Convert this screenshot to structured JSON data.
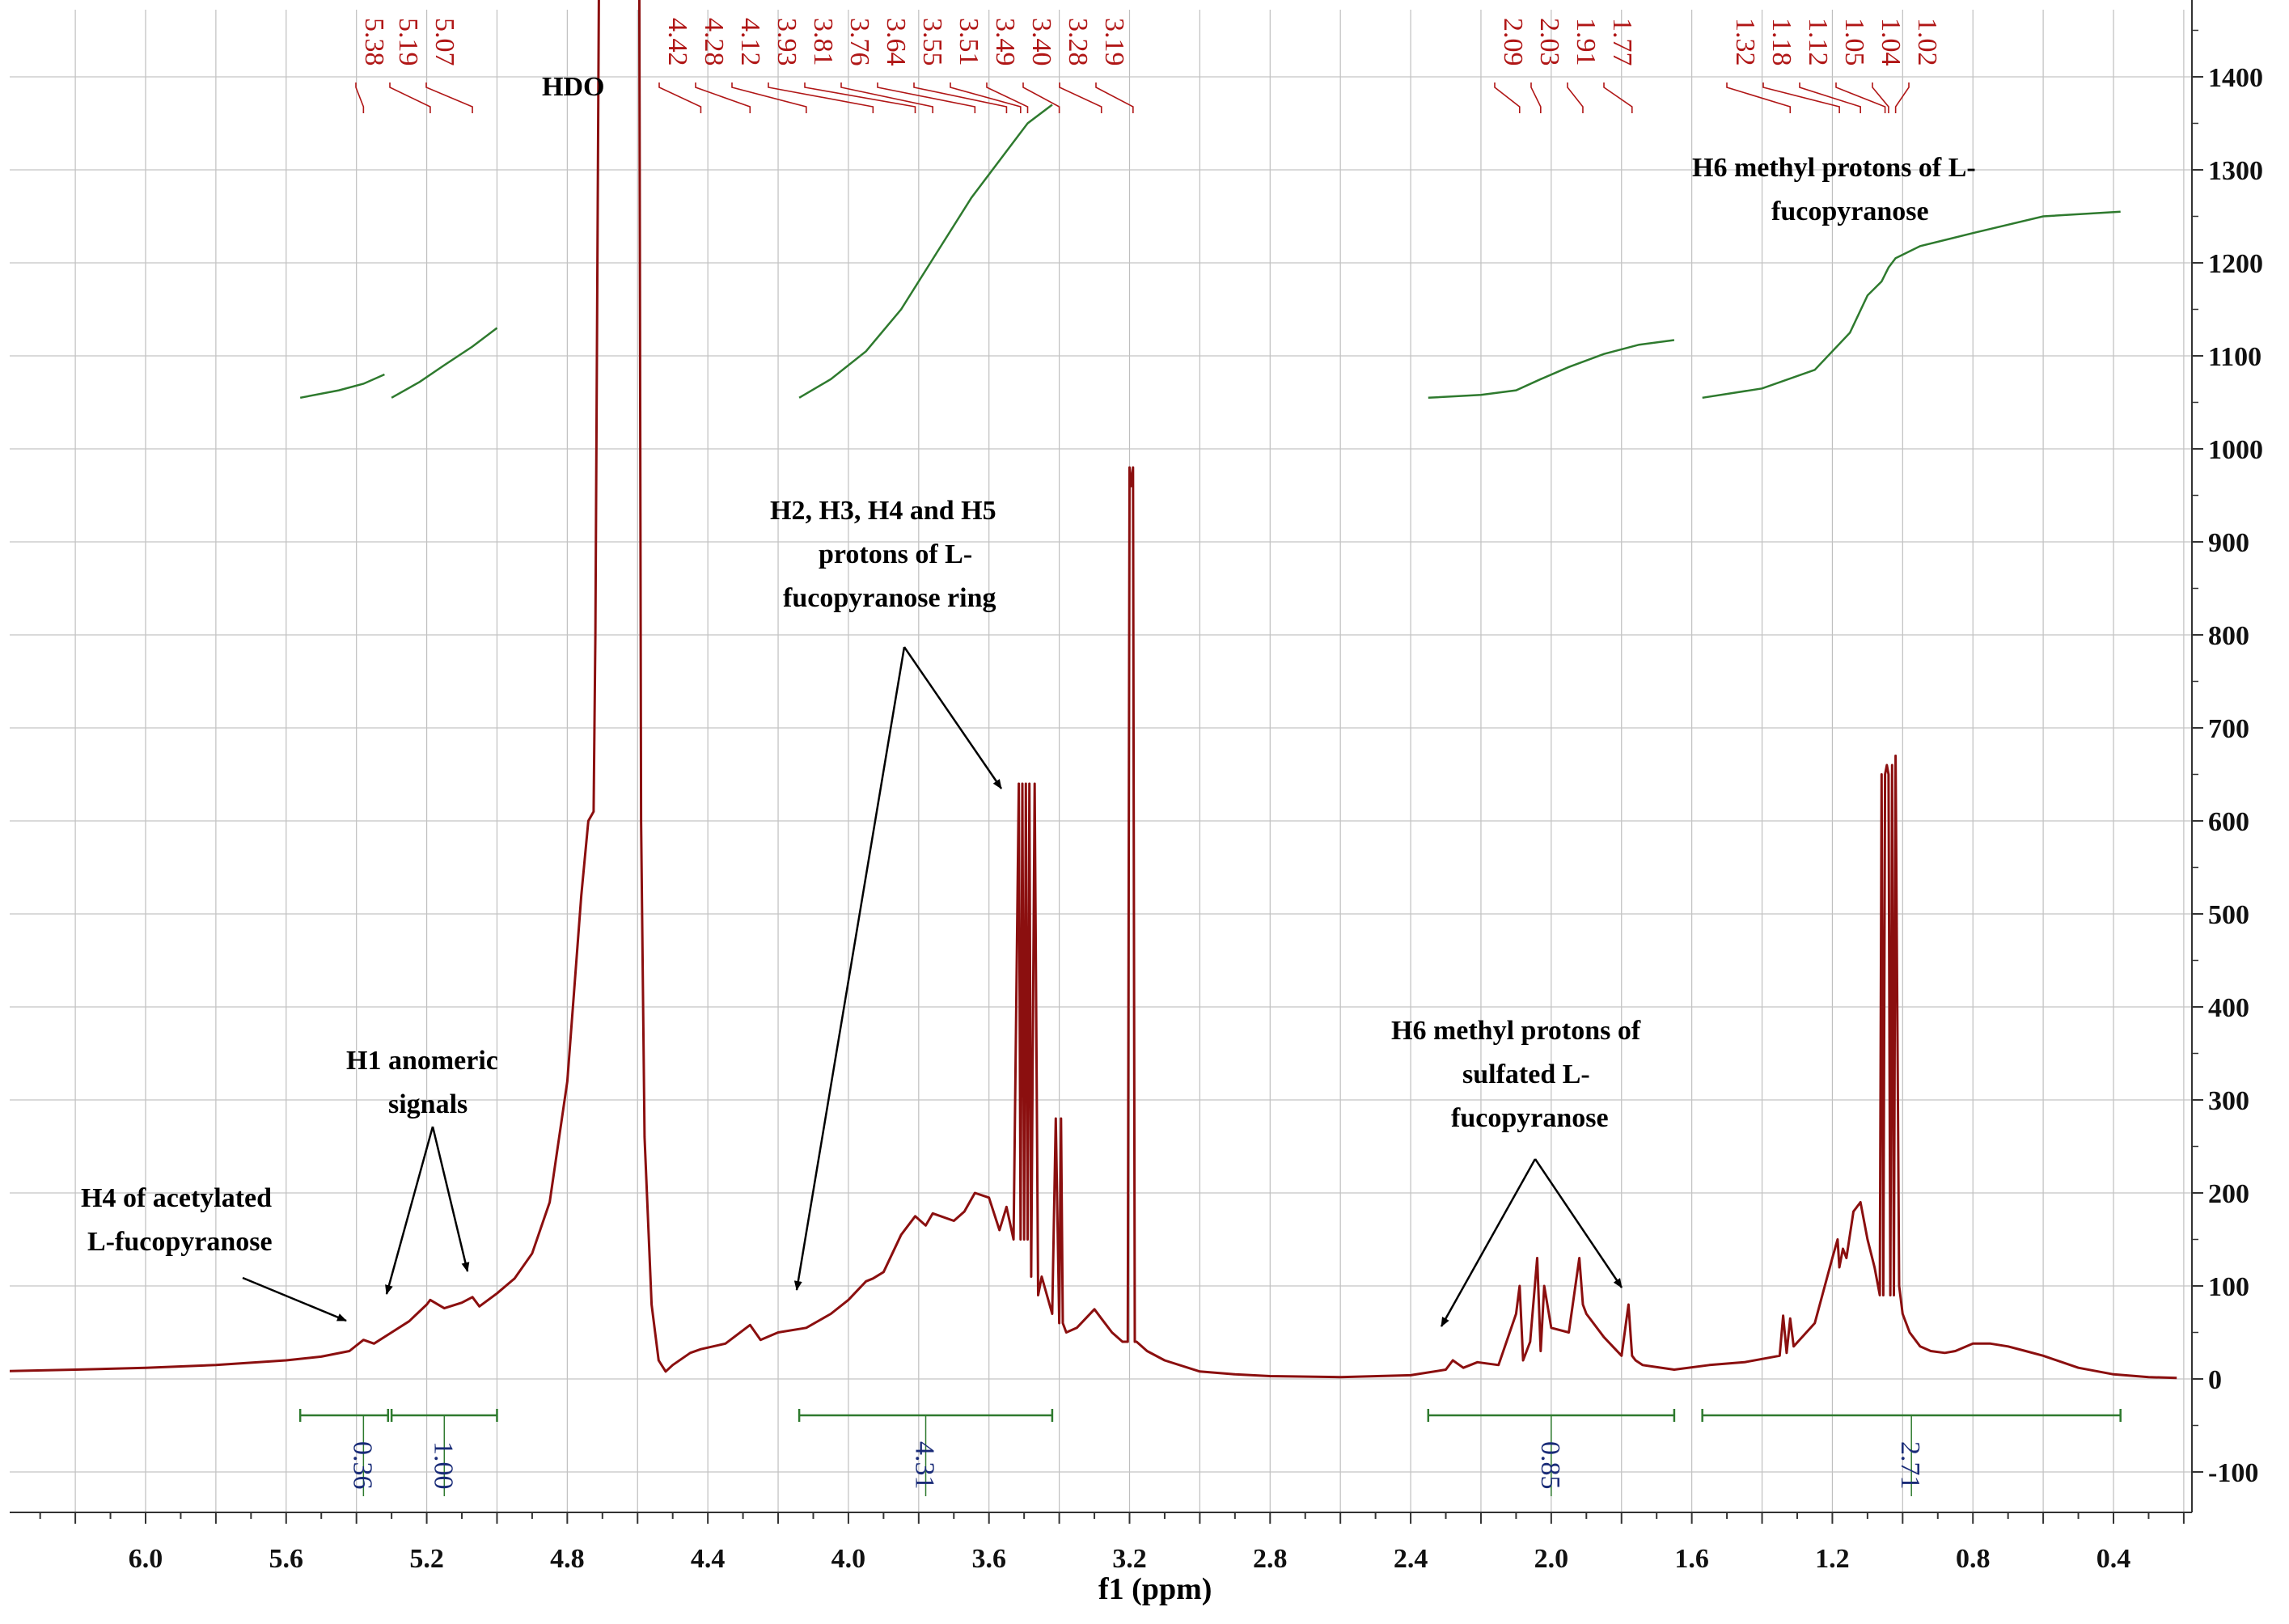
{
  "chart_data": {
    "type": "line",
    "title": "",
    "xlabel": "f1 (ppm)",
    "ylabel": "",
    "xlim": [
      6.5,
      0.2
    ],
    "ylim": [
      -140,
      1470
    ],
    "grid": true,
    "x_ticks": [
      "6.0",
      "5.6",
      "5.2",
      "4.8",
      "4.4",
      "4.0",
      "3.6",
      "3.2",
      "2.8",
      "2.4",
      "2.0",
      "1.6",
      "1.2",
      "0.8",
      "0.4"
    ],
    "y_ticks": [
      "-100",
      "0",
      "100",
      "200",
      "300",
      "400",
      "500",
      "600",
      "700",
      "800",
      "900",
      "1000",
      "1100",
      "1200",
      "1300",
      "1400"
    ],
    "peak_labels": {
      "group1": [
        "5.38",
        "5.19",
        "5.07"
      ],
      "group2": [
        "4.42",
        "4.28",
        "4.12",
        "3.93",
        "3.81",
        "3.76",
        "3.64",
        "3.55",
        "3.51",
        "3.49",
        "3.40",
        "3.28",
        "3.19"
      ],
      "group3": [
        "2.09",
        "2.03",
        "1.91",
        "1.77"
      ],
      "group4": [
        "1.32",
        "1.18",
        "1.12",
        "1.05",
        "1.04",
        "1.02"
      ]
    },
    "hdo_label": "HDO",
    "integrals": [
      {
        "from": 5.56,
        "to": 5.31,
        "value": "0.36"
      },
      {
        "from": 5.3,
        "to": 5.0,
        "value": "1.00"
      },
      {
        "from": 4.14,
        "to": 3.42,
        "value": "4.31"
      },
      {
        "from": 2.35,
        "to": 1.65,
        "value": "0.85"
      },
      {
        "from": 1.57,
        "to": 0.38,
        "value": "2.71"
      }
    ],
    "spectrum": {
      "x": [
        6.45,
        6.2,
        6.0,
        5.8,
        5.6,
        5.5,
        5.42,
        5.38,
        5.35,
        5.3,
        5.25,
        5.2,
        5.19,
        5.15,
        5.1,
        5.07,
        5.05,
        5.0,
        4.95,
        4.9,
        4.85,
        4.8,
        4.76,
        4.74,
        4.725,
        4.72,
        4.71,
        4.705,
        4.7,
        4.65,
        4.6,
        4.595,
        4.59,
        4.58,
        4.56,
        4.54,
        4.52,
        4.5,
        4.45,
        4.42,
        4.35,
        4.28,
        4.25,
        4.2,
        4.12,
        4.05,
        4.0,
        3.95,
        3.93,
        3.9,
        3.85,
        3.81,
        3.78,
        3.76,
        3.7,
        3.67,
        3.64,
        3.6,
        3.57,
        3.55,
        3.53,
        3.515,
        3.51,
        3.505,
        3.5,
        3.495,
        3.49,
        3.485,
        3.48,
        3.47,
        3.46,
        3.45,
        3.42,
        3.41,
        3.4,
        3.395,
        3.39,
        3.38,
        3.35,
        3.3,
        3.28,
        3.25,
        3.22,
        3.205,
        3.2,
        3.195,
        3.19,
        3.185,
        3.18,
        3.15,
        3.1,
        3.0,
        2.9,
        2.8,
        2.6,
        2.4,
        2.3,
        2.28,
        2.25,
        2.21,
        2.15,
        2.1,
        2.09,
        2.08,
        2.06,
        2.04,
        2.03,
        2.02,
        2.0,
        1.95,
        1.92,
        1.91,
        1.9,
        1.85,
        1.8,
        1.78,
        1.77,
        1.76,
        1.74,
        1.65,
        1.55,
        1.45,
        1.35,
        1.34,
        1.33,
        1.32,
        1.31,
        1.25,
        1.2,
        1.185,
        1.18,
        1.17,
        1.16,
        1.14,
        1.12,
        1.1,
        1.08,
        1.065,
        1.06,
        1.055,
        1.05,
        1.045,
        1.04,
        1.035,
        1.03,
        1.025,
        1.02,
        1.01,
        1.0,
        0.98,
        0.95,
        0.92,
        0.88,
        0.85,
        0.8,
        0.75,
        0.7,
        0.65,
        0.6,
        0.5,
        0.4,
        0.3,
        0.22
      ],
      "y": [
        8,
        10,
        12,
        15,
        20,
        24,
        30,
        42,
        38,
        50,
        62,
        80,
        85,
        76,
        82,
        88,
        78,
        92,
        108,
        135,
        190,
        320,
        520,
        600,
        610,
        800,
        1500,
        1500,
        1500,
        1500,
        1500,
        1500,
        600,
        260,
        80,
        20,
        8,
        15,
        28,
        32,
        38,
        58,
        42,
        50,
        55,
        70,
        85,
        105,
        108,
        115,
        155,
        175,
        165,
        178,
        170,
        180,
        200,
        195,
        160,
        185,
        150,
        640,
        150,
        640,
        150,
        640,
        150,
        640,
        110,
        640,
        90,
        110,
        70,
        280,
        60,
        280,
        60,
        50,
        55,
        75,
        65,
        50,
        40,
        40,
        980,
        960,
        980,
        40,
        40,
        30,
        20,
        8,
        5,
        3,
        2,
        4,
        10,
        20,
        12,
        18,
        15,
        70,
        100,
        20,
        40,
        130,
        30,
        100,
        55,
        50,
        130,
        80,
        70,
        45,
        25,
        80,
        25,
        20,
        15,
        10,
        15,
        18,
        25,
        68,
        28,
        65,
        35,
        60,
        130,
        150,
        120,
        140,
        130,
        180,
        190,
        150,
        120,
        90,
        650,
        90,
        650,
        660,
        650,
        90,
        660,
        90,
        670,
        100,
        70,
        50,
        35,
        30,
        28,
        30,
        38,
        38,
        35,
        30,
        25,
        12,
        5,
        2,
        1
      ]
    },
    "integral_curves": [
      {
        "x": [
          5.56,
          5.45,
          5.38,
          5.32
        ],
        "y": [
          1055,
          1063,
          1070,
          1080
        ]
      },
      {
        "x": [
          5.3,
          5.22,
          5.15,
          5.07,
          5.0
        ],
        "y": [
          1055,
          1072,
          1090,
          1110,
          1130
        ]
      },
      {
        "x": [
          4.14,
          4.05,
          3.95,
          3.85,
          3.75,
          3.65,
          3.55,
          3.49,
          3.42
        ],
        "y": [
          1055,
          1075,
          1105,
          1150,
          1210,
          1270,
          1320,
          1350,
          1370
        ]
      },
      {
        "x": [
          2.35,
          2.2,
          2.1,
          2.03,
          1.95,
          1.85,
          1.75,
          1.65
        ],
        "y": [
          1055,
          1058,
          1063,
          1075,
          1088,
          1102,
          1112,
          1117
        ]
      },
      {
        "x": [
          1.57,
          1.4,
          1.25,
          1.15,
          1.1,
          1.06,
          1.04,
          1.02,
          0.95,
          0.8,
          0.6,
          0.38
        ],
        "y": [
          1055,
          1065,
          1085,
          1125,
          1165,
          1180,
          1195,
          1205,
          1218,
          1232,
          1250,
          1255
        ]
      }
    ],
    "annotations": {
      "h4_acetylated": [
        "H4 of acetylated",
        "L-fucopyranose"
      ],
      "h1_anomeric": [
        "H1 anomeric",
        "signals"
      ],
      "ring_protons": [
        "H2, H3, H4 and H5",
        "protons of L-",
        "fucopyranose ring"
      ],
      "h6_sulfated": [
        "H6 methyl protons of",
        "sulfated L-",
        "fucopyranose"
      ],
      "h6_methyl": [
        "H6 methyl protons of L-",
        "fucopyranose"
      ]
    }
  }
}
